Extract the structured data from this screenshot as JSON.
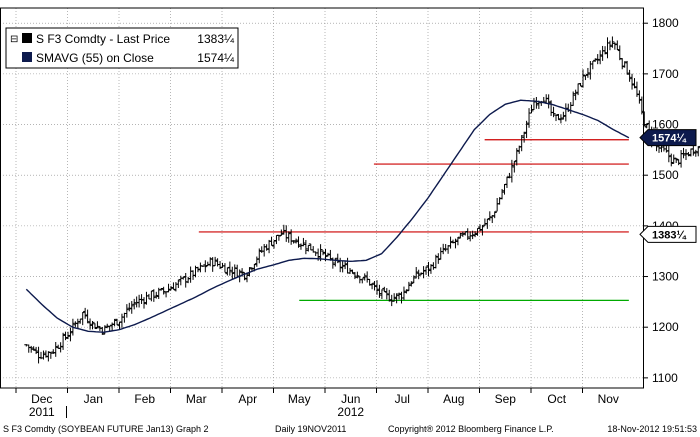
{
  "chart_data": {
    "type": "ohlc-line",
    "legend": [
      {
        "label": "S F3 Comdty - Last Price",
        "value": "1383¼",
        "color": "#000000"
      },
      {
        "label": "SMAVG (55) on Close",
        "value": "1574¼",
        "color": "#0d1a4d"
      }
    ],
    "ylim": [
      1080,
      1830
    ],
    "yticks": [
      {
        "v": 1100,
        "label": "1100"
      },
      {
        "v": 1200,
        "label": "1200"
      },
      {
        "v": 1300,
        "label": "1300"
      },
      {
        "v": 1400,
        "label": "1400"
      },
      {
        "v": 1500,
        "label": "1500"
      },
      {
        "v": 1600,
        "label": "1600"
      },
      {
        "v": 1700,
        "label": "1700"
      },
      {
        "v": 1800,
        "label": "1800"
      }
    ],
    "months": [
      "Dec",
      "Jan",
      "Feb",
      "Mar",
      "Apr",
      "May",
      "Jun",
      "Jul",
      "Aug",
      "Sep",
      "Oct",
      "Nov"
    ],
    "years": [
      "2011",
      "2012"
    ],
    "price_tags": [
      {
        "value": 1574.25,
        "label": "1574¼",
        "style": "dark"
      },
      {
        "value": 1383.25,
        "label": "1383¼",
        "style": "light"
      }
    ],
    "hlines": [
      {
        "y": 1570,
        "from_month": 8.6,
        "to_month": 11.4,
        "color": "#cc0000"
      },
      {
        "y": 1522,
        "from_month": 6.45,
        "to_month": 11.4,
        "color": "#cc0000"
      },
      {
        "y": 1388,
        "from_month": 3.05,
        "to_month": 11.4,
        "color": "#cc0000"
      },
      {
        "y": 1253,
        "from_month": 5.0,
        "to_month": 11.4,
        "color": "#00aa00"
      }
    ],
    "price_anchors": [
      [
        -0.3,
        1165
      ],
      [
        -0.05,
        1145
      ],
      [
        0.2,
        1152
      ],
      [
        0.5,
        1185
      ],
      [
        0.8,
        1228
      ],
      [
        1.0,
        1205
      ],
      [
        1.2,
        1195
      ],
      [
        1.5,
        1215
      ],
      [
        1.8,
        1248
      ],
      [
        2.1,
        1262
      ],
      [
        2.4,
        1272
      ],
      [
        2.7,
        1290
      ],
      [
        3.0,
        1310
      ],
      [
        3.3,
        1330
      ],
      [
        3.6,
        1315
      ],
      [
        3.95,
        1305
      ],
      [
        4.3,
        1355
      ],
      [
        4.65,
        1385
      ],
      [
        5.0,
        1368
      ],
      [
        5.3,
        1352
      ],
      [
        5.5,
        1340
      ],
      [
        5.7,
        1325
      ],
      [
        5.95,
        1315
      ],
      [
        6.2,
        1300
      ],
      [
        6.35,
        1290
      ],
      [
        6.5,
        1272
      ],
      [
        6.65,
        1262
      ],
      [
        6.8,
        1258
      ],
      [
        7.0,
        1265
      ],
      [
        7.2,
        1295
      ],
      [
        7.4,
        1310
      ],
      [
        7.55,
        1318
      ],
      [
        7.7,
        1340
      ],
      [
        7.9,
        1358
      ],
      [
        8.1,
        1375
      ],
      [
        8.3,
        1383
      ],
      [
        8.55,
        1398
      ],
      [
        8.75,
        1420
      ],
      [
        8.95,
        1470
      ],
      [
        9.15,
        1520
      ],
      [
        9.35,
        1580
      ],
      [
        9.55,
        1645
      ],
      [
        9.75,
        1655
      ],
      [
        9.95,
        1610
      ],
      [
        10.15,
        1620
      ],
      [
        10.35,
        1660
      ],
      [
        10.55,
        1700
      ],
      [
        10.75,
        1722
      ],
      [
        10.95,
        1750
      ],
      [
        11.1,
        1765
      ],
      [
        11.25,
        1728
      ],
      [
        11.4,
        1700
      ],
      [
        11.55,
        1660
      ],
      [
        11.7,
        1605
      ],
      [
        11.9,
        1560
      ],
      [
        12.1,
        1545
      ],
      [
        12.3,
        1525
      ],
      [
        12.5,
        1540
      ],
      [
        12.7,
        1555
      ],
      [
        12.9,
        1545
      ],
      [
        13.1,
        1565
      ],
      [
        13.3,
        1575
      ],
      [
        13.5,
        1550
      ],
      [
        13.7,
        1510
      ],
      [
        13.85,
        1460
      ],
      [
        14.0,
        1410
      ],
      [
        14.15,
        1385
      ]
    ],
    "sma_anchors": [
      [
        -0.3,
        1275
      ],
      [
        0.0,
        1245
      ],
      [
        0.3,
        1218
      ],
      [
        0.6,
        1200
      ],
      [
        0.9,
        1192
      ],
      [
        1.2,
        1190
      ],
      [
        1.5,
        1195
      ],
      [
        1.8,
        1205
      ],
      [
        2.1,
        1218
      ],
      [
        2.4,
        1232
      ],
      [
        2.7,
        1246
      ],
      [
        3.0,
        1260
      ],
      [
        3.3,
        1276
      ],
      [
        3.6,
        1290
      ],
      [
        3.9,
        1303
      ],
      [
        4.2,
        1315
      ],
      [
        4.5,
        1323
      ],
      [
        4.8,
        1332
      ],
      [
        5.1,
        1336
      ],
      [
        5.4,
        1335
      ],
      [
        5.7,
        1332
      ],
      [
        6.0,
        1330
      ],
      [
        6.3,
        1332
      ],
      [
        6.6,
        1345
      ],
      [
        6.9,
        1378
      ],
      [
        7.2,
        1415
      ],
      [
        7.5,
        1455
      ],
      [
        7.8,
        1500
      ],
      [
        8.1,
        1545
      ],
      [
        8.4,
        1590
      ],
      [
        8.7,
        1620
      ],
      [
        9.0,
        1640
      ],
      [
        9.3,
        1648
      ],
      [
        9.6,
        1646
      ],
      [
        9.9,
        1640
      ],
      [
        10.2,
        1630
      ],
      [
        10.5,
        1620
      ],
      [
        10.8,
        1608
      ],
      [
        11.1,
        1590
      ],
      [
        11.4,
        1574
      ]
    ]
  },
  "footer": {
    "left": "S F3 Comdty (SOYBEAN FUTURE   Jan13) Graph 2",
    "mid": "Daily 19NOV2011",
    "copyright": "Copyright® 2012 Bloomberg Finance L.P.",
    "right": "18-Nov-2012 19:51:53"
  }
}
